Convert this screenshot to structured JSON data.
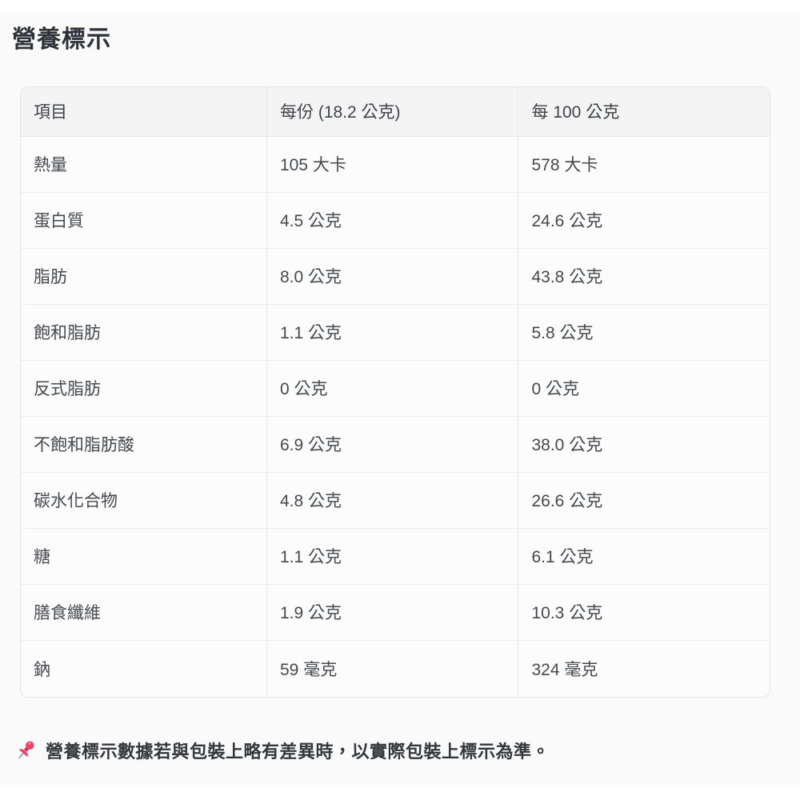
{
  "title": "營養標示",
  "table": {
    "columns": [
      "項目",
      "每份 (18.2 公克)",
      "每 100 公克"
    ],
    "rows": [
      {
        "item": "熱量",
        "per_serving": "105 大卡",
        "per_100g": "578 大卡"
      },
      {
        "item": "蛋白質",
        "per_serving": "4.5 公克",
        "per_100g": "24.6 公克"
      },
      {
        "item": "脂肪",
        "per_serving": "8.0 公克",
        "per_100g": "43.8 公克"
      },
      {
        "item": "飽和脂肪",
        "per_serving": "1.1 公克",
        "per_100g": "5.8 公克"
      },
      {
        "item": "反式脂肪",
        "per_serving": "0 公克",
        "per_100g": "0 公克"
      },
      {
        "item": "不飽和脂肪酸",
        "per_serving": "6.9 公克",
        "per_100g": "38.0 公克"
      },
      {
        "item": "碳水化合物",
        "per_serving": "4.8 公克",
        "per_100g": "26.6 公克"
      },
      {
        "item": "糖",
        "per_serving": "1.1 公克",
        "per_100g": "6.1 公克"
      },
      {
        "item": "膳食纖維",
        "per_serving": "1.9 公克",
        "per_100g": "10.3 公克"
      },
      {
        "item": "鈉",
        "per_serving": "59 毫克",
        "per_100g": "324 毫克"
      }
    ]
  },
  "note": {
    "icon": "pushpin-icon",
    "text": "營養標示數據若與包裝上略有差異時，以實際包裝上標示為準。"
  },
  "colors": {
    "pin_pink": "#ef4067",
    "pin_dark": "#d62a52",
    "needle_gray": "#9aa0a8",
    "header_bg": "#f4f4f5",
    "row_bg": "#fcfcfc",
    "panel_bg": "#fafafa",
    "border": "#e8e8e9",
    "text": "#45494e"
  }
}
